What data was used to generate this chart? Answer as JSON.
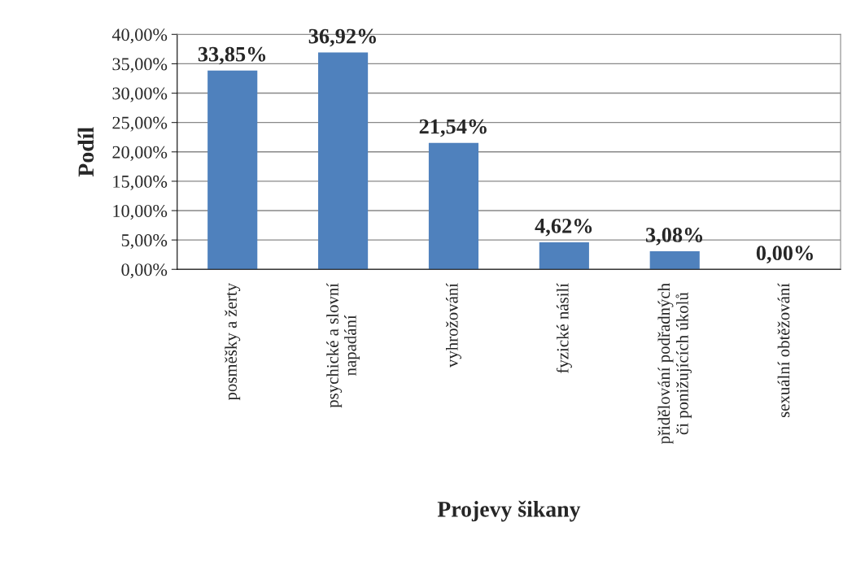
{
  "chart_data": {
    "type": "bar",
    "xlabel": "Projevy šikany",
    "ylabel": "Podíl",
    "categories": [
      "posměšky a žerty",
      "psychické a slovní\nnapadání",
      "vyhrožování",
      "fyzické násilí",
      "přidělování podřadných\nči ponižujících úkolů",
      "sexuální obtěžování"
    ],
    "values": [
      33.85,
      36.92,
      21.54,
      4.62,
      3.08,
      0.0
    ],
    "value_labels": [
      "33,85%",
      "36,92%",
      "21,54%",
      "4,62%",
      "3,08%",
      "0,00%"
    ],
    "color": "#4f81bd",
    "ylim": [
      0,
      40
    ],
    "yticks": [
      {
        "value": 0,
        "label": "0,00%"
      },
      {
        "value": 5,
        "label": "5,00%"
      },
      {
        "value": 10,
        "label": "10,00%"
      },
      {
        "value": 15,
        "label": "15,00%"
      },
      {
        "value": 20,
        "label": "20,00%"
      },
      {
        "value": 25,
        "label": "25,00%"
      },
      {
        "value": 30,
        "label": "30,00%"
      },
      {
        "value": 35,
        "label": "35,00%"
      },
      {
        "value": 40,
        "label": "40,00%"
      }
    ],
    "grid": "y"
  }
}
